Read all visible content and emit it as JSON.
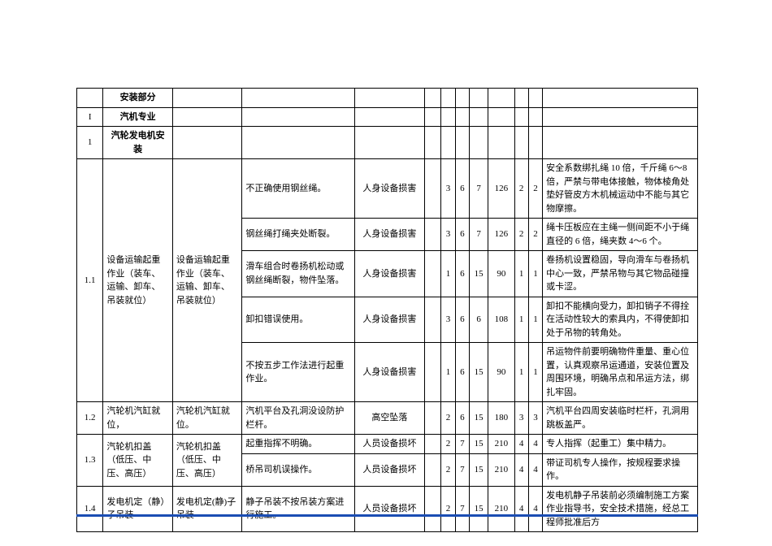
{
  "table": {
    "headers": {
      "section_title": "安装部分",
      "row_I": {
        "idx": "I",
        "name": "汽机专业"
      },
      "row_1": {
        "idx": "1",
        "name": "汽轮发电机安装"
      }
    },
    "rows": [
      {
        "idx": "1.1",
        "name": "设备运输起重作业（装车、运输、卸车、吊装就位）",
        "task": "设备运输起重作业（装车、运输、卸车、吊装就位）",
        "sub": [
          {
            "hazard": "不正确使用钢丝绳。",
            "conseq": "人身设备损害",
            "n1": "3",
            "n2": "6",
            "n3": "7",
            "n4": "126",
            "n5": "2",
            "n6": "2",
            "control": "安全系数绑扎绳 10 倍，千斤绳 6～8 倍，严禁与带电体接触，物体棱角处垫好管皮方木机械运动中不能与其它物摩擦。"
          },
          {
            "hazard": "钢丝绳打绳夹处断裂。",
            "conseq": "人身设备损害",
            "n1": "3",
            "n2": "6",
            "n3": "7",
            "n4": "126",
            "n5": "2",
            "n6": "2",
            "control": "绳卡压板应在主绳一侧间距不小于绳直径的 6 倍，绳夹数 4～6 个。"
          },
          {
            "hazard": "滑车组合时卷扬机松动或钢丝绳断裂，物件坠落。",
            "conseq": "人身设备损害",
            "n1": "1",
            "n2": "6",
            "n3": "15",
            "n4": "90",
            "n5": "1",
            "n6": "1",
            "control": "卷扬机设置稳固，导向滑车与卷扬机中心一致，严禁吊物与其它物品碰撞或卡涩。"
          },
          {
            "hazard": "卸扣错误使用。",
            "conseq": "人身设备损害",
            "n1": "3",
            "n2": "6",
            "n3": "6",
            "n4": "108",
            "n5": "1",
            "n6": "1",
            "control": "卸扣不能横向受力，卸扣销子不得拴在活动性较大的索具内，不得使卸扣处于吊物的转角处。"
          },
          {
            "hazard": "不按五步工作法进行起重作业。",
            "conseq": "人身设备损害",
            "n1": "1",
            "n2": "6",
            "n3": "15",
            "n4": "90",
            "n5": "1",
            "n6": "1",
            "control": "吊运物件前要明确物件重量、重心位置，认真观察吊运通道，安装位置及周围环境，明确吊点和吊运方法，绑扎牢固。"
          }
        ]
      },
      {
        "idx": "1.2",
        "name": "汽轮机汽缸就位，",
        "task": "汽轮机汽缸就位。",
        "sub": [
          {
            "hazard": "汽机平台及孔洞没设防护栏杆。",
            "conseq": "高空坠落",
            "n1": "2",
            "n2": "6",
            "n3": "15",
            "n4": "180",
            "n5": "3",
            "n6": "3",
            "control": "汽机平台四周安装临时栏杆，孔洞用跳板盖严。"
          }
        ]
      },
      {
        "idx": "1.3",
        "name": "汽轮机扣盖（低压、中压、高压）",
        "task": "汽轮机扣盖（低压、中压、高压）",
        "sub": [
          {
            "hazard": "起重指挥不明确。",
            "conseq": "人员设备损坏",
            "n1": "2",
            "n2": "7",
            "n3": "15",
            "n4": "210",
            "n5": "4",
            "n6": "4",
            "control": "专人指挥（起重工）集中精力。"
          },
          {
            "hazard": "桥吊司机误操作。",
            "conseq": "人员设备损坏",
            "n1": "2",
            "n2": "7",
            "n3": "15",
            "n4": "210",
            "n5": "4",
            "n6": "4",
            "control": "带证司机专人操作，按规程要求操作。"
          }
        ]
      },
      {
        "idx": "1.4",
        "name": "发电机定（静）子吊装",
        "task": "发电机定(静)子吊装",
        "sub": [
          {
            "hazard": "静子吊装不按吊装方案进行施工。",
            "conseq": "人员设备损坏",
            "n1": "2",
            "n2": "7",
            "n3": "15",
            "n4": "210",
            "n5": "4",
            "n6": "4",
            "control": "发电机静子吊装前必须编制施工方案作业指导书，安全技术措施，经总工程师批准后方"
          }
        ]
      }
    ]
  },
  "colors": {
    "border": "#000000",
    "footer_line": "#1a4db3",
    "background": "#ffffff",
    "text": "#000000"
  },
  "font": {
    "family": "SimSun",
    "base_size": 11
  }
}
